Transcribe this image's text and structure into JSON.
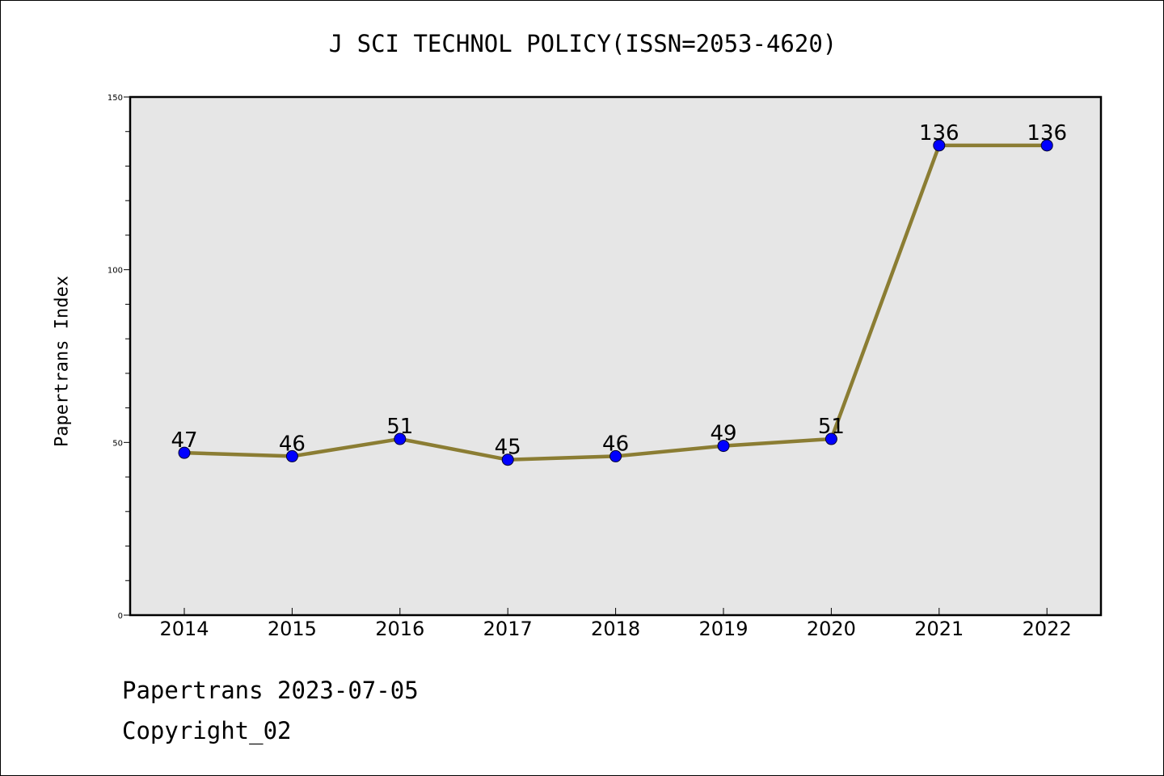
{
  "title": "J SCI TECHNOL POLICY(ISSN=2053-4620)",
  "footer": {
    "line1": "Papertrans 2023-07-05",
    "line2": "Copyright_02"
  },
  "colors": {
    "line": "#8b7d33",
    "marker": "#0000ff",
    "plot_background": "#e6e6e6"
  },
  "chart_data": {
    "type": "line",
    "title": "J SCI TECHNOL POLICY(ISSN=2053-4620)",
    "xlabel": "",
    "ylabel": "Papertrans Index",
    "categories": [
      "2014",
      "2015",
      "2016",
      "2017",
      "2018",
      "2019",
      "2020",
      "2021",
      "2022"
    ],
    "values": [
      47,
      46,
      51,
      45,
      46,
      49,
      51,
      136,
      136
    ],
    "ylim": [
      0,
      150
    ],
    "yticks": [
      0,
      50,
      100,
      150
    ],
    "grid": false,
    "legend": "none",
    "data_labels": true
  }
}
